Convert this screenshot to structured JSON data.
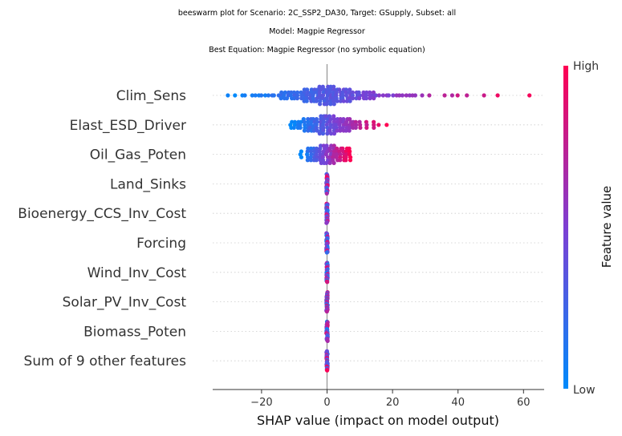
{
  "titles": {
    "line1": "beeswarm plot for Scenario: 2C_SSP2_DA30, Target: GSupply, Subset: all",
    "line2": "Model: Magpie Regressor",
    "line3": "Best Equation: Magpie Regressor (no symbolic equation)"
  },
  "colors": {
    "low": "#008afb",
    "high": "#ff0052",
    "mid": "#7d3fd3",
    "zero_line": "#999999",
    "row_line": "#cccccc"
  },
  "chart_data": {
    "type": "beeswarm",
    "xlabel": "SHAP value (impact on model output)",
    "xlim": [
      -35,
      66
    ],
    "xticks": [
      -20,
      0,
      20,
      40,
      60
    ],
    "xtick_labels": [
      "−20",
      "0",
      "20",
      "40",
      "60"
    ],
    "colorbar": {
      "label": "Feature value",
      "high": "High",
      "low": "Low"
    },
    "features": [
      {
        "name": "Clim_Sens",
        "kind": "wide",
        "min": -30,
        "max": 62,
        "points": [
          -30,
          -28,
          -26,
          -25,
          -23,
          -22,
          -21,
          -20,
          -19,
          -18,
          -17,
          -16,
          -15,
          -14,
          -13,
          -12,
          -11,
          -10,
          -9,
          -8,
          -7,
          -6,
          -5,
          -4,
          -3,
          -2,
          -1,
          0,
          1,
          2,
          3,
          4,
          5,
          6,
          7,
          8,
          9,
          10,
          11,
          12,
          13,
          14,
          15,
          16,
          17,
          18,
          19,
          20,
          21,
          22,
          23,
          24,
          25,
          26,
          27,
          29,
          31,
          36,
          38,
          40,
          43,
          48,
          52,
          62
        ]
      },
      {
        "name": "Elast_ESD_Driver",
        "kind": "medium",
        "min": -11,
        "max": 18,
        "points": [
          -11,
          -10,
          -9,
          -8,
          -7,
          -6,
          -5,
          -4,
          -3,
          -2,
          -1,
          0,
          1,
          2,
          3,
          4,
          5,
          6,
          7,
          8,
          9,
          10,
          12,
          14,
          16,
          18
        ]
      },
      {
        "name": "Oil_Gas_Poten",
        "kind": "medium",
        "min": -8,
        "max": 7,
        "points": [
          -8,
          -6,
          -5,
          -4,
          -3,
          -2,
          -1,
          0,
          1,
          2,
          3,
          4,
          5,
          6,
          7
        ]
      },
      {
        "name": "Land_Sinks",
        "kind": "zero",
        "min": 0,
        "max": 0,
        "points": [
          0
        ]
      },
      {
        "name": "Bioenergy_CCS_Inv_Cost",
        "kind": "zero",
        "min": 0,
        "max": 0,
        "points": [
          0
        ]
      },
      {
        "name": "Forcing",
        "kind": "zero",
        "min": 0,
        "max": 0,
        "points": [
          0
        ]
      },
      {
        "name": "Wind_Inv_Cost",
        "kind": "zero",
        "min": 0,
        "max": 0,
        "points": [
          0
        ]
      },
      {
        "name": "Solar_PV_Inv_Cost",
        "kind": "zero",
        "min": 0,
        "max": 0,
        "points": [
          0
        ]
      },
      {
        "name": "Biomass_Poten",
        "kind": "zero",
        "min": 0,
        "max": 0,
        "points": [
          0
        ]
      },
      {
        "name": "Sum of 9 other features",
        "kind": "zero",
        "min": 0,
        "max": 0,
        "points": [
          0
        ]
      }
    ]
  }
}
